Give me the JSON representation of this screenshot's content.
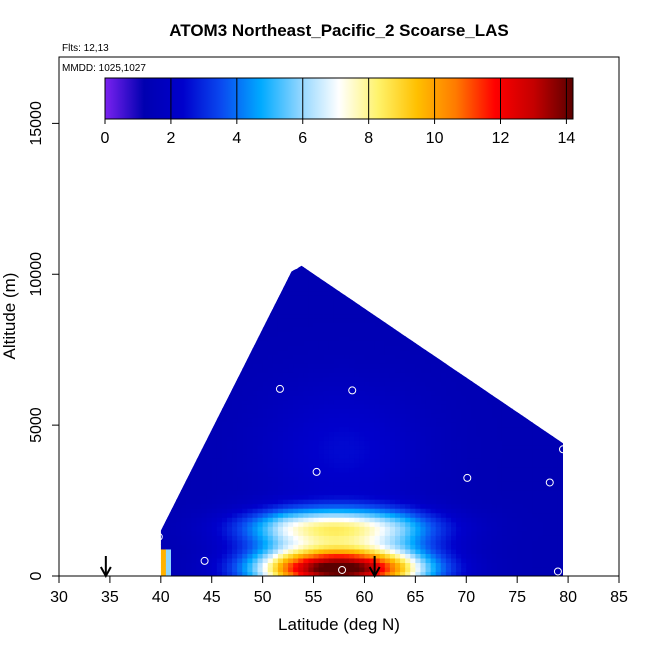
{
  "chart_data": {
    "type": "heatmap",
    "title": "ATOM3 Northeast_Pacific_2 Scoarse_LAS",
    "flights_label": "Flts: 12,13",
    "dates_label": "MMDD: 1025,1027",
    "xlabel": "Latitude (deg N)",
    "ylabel": "Altitude (m)",
    "xlim": [
      30,
      85
    ],
    "ylim": [
      0,
      17200
    ],
    "x_ticks": [
      30,
      35,
      40,
      45,
      50,
      55,
      60,
      65,
      70,
      75,
      80,
      85
    ],
    "y_ticks": [
      0,
      5000,
      10000,
      15000
    ],
    "colorbar": {
      "range": [
        0,
        14.2
      ],
      "ticks": [
        0,
        2,
        4,
        6,
        8,
        10,
        12,
        14
      ],
      "colors": [
        "#7B22F0",
        "#0000B0",
        "#0000CC",
        "#0A4BF0",
        "#00AAFF",
        "#8FD5FF",
        "#FFFFFF",
        "#FFF36B",
        "#FFC000",
        "#FF7A00",
        "#FF0000",
        "#C40000",
        "#5A0000"
      ]
    },
    "envelope": {
      "x_start": 40,
      "x_end": 79.5,
      "peak_lat": 53.3,
      "peak_alt": 10400,
      "top_alt_at_start": 1500,
      "top_alt_at_end": 4400
    },
    "profile_points": [
      {
        "lat": 39.8,
        "alt": 1300
      },
      {
        "lat": 44.3,
        "alt": 500
      },
      {
        "lat": 51.7,
        "alt": 6200
      },
      {
        "lat": 53.2,
        "alt": 10300
      },
      {
        "lat": 55.3,
        "alt": 3450
      },
      {
        "lat": 57.8,
        "alt": 200
      },
      {
        "lat": 58.8,
        "alt": 6150
      },
      {
        "lat": 70.1,
        "alt": 3250
      },
      {
        "lat": 78.2,
        "alt": 3100
      },
      {
        "lat": 79.0,
        "alt": 150
      },
      {
        "lat": 79.5,
        "alt": 4200
      }
    ],
    "arrows_lat": [
      34.6,
      61.0
    ]
  }
}
